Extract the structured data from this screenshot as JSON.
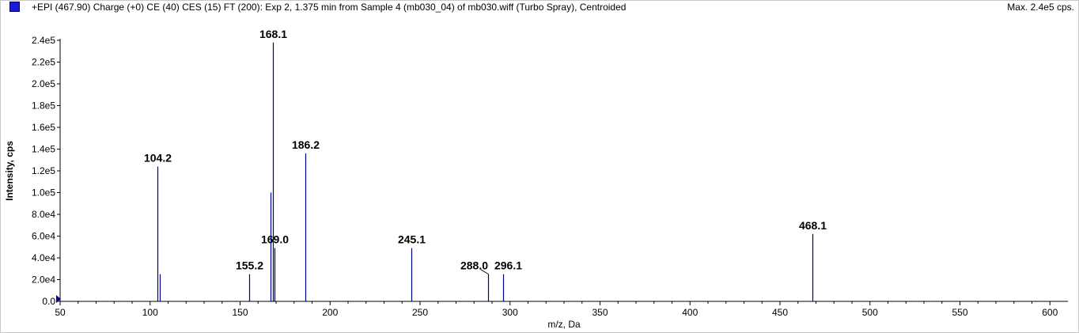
{
  "header": {
    "title": "+EPI (467.90) Charge (+0) CE (40) CES (15) FT (200): Exp 2, 1.375 min from Sample 4 (mb030_04) of mb030.wiff (Turbo Spray), Centroided",
    "max_label": "Max. 2.4e5 cps."
  },
  "colors": {
    "series": "#00008b",
    "swatch": "#1a1adc",
    "axis": "#000000"
  },
  "chart_data": {
    "type": "bar",
    "title": "+EPI (467.90) Charge (+0) CE (40) CES (15) FT (200): Exp 2, 1.375 min from Sample 4 (mb030_04) of mb030.wiff (Turbo Spray), Centroided",
    "xlabel": "m/z, Da",
    "ylabel": "Intensity, cps",
    "xlim": [
      50,
      610
    ],
    "ylim": [
      0,
      240000
    ],
    "xticks": [
      50,
      100,
      150,
      200,
      250,
      300,
      350,
      400,
      450,
      500,
      550,
      600
    ],
    "xtick_labels": [
      "50",
      "100",
      "150",
      "200",
      "250",
      "300",
      "350",
      "400",
      "450",
      "500",
      "550",
      "600"
    ],
    "yticks": [
      0,
      20000,
      40000,
      60000,
      80000,
      100000,
      120000,
      140000,
      160000,
      180000,
      200000,
      220000,
      240000
    ],
    "ytick_labels": [
      "0.0",
      "2.0e4",
      "4.0e4",
      "6.0e4",
      "8.0e4",
      "1.0e5",
      "1.2e5",
      "1.4e5",
      "1.6e5",
      "1.8e5",
      "2.0e5",
      "2.2e5",
      "2.4e5"
    ],
    "peaks": [
      {
        "x": 104.2,
        "y": 124000,
        "label": "104.2"
      },
      {
        "x": 105.2,
        "y": 25000,
        "label": ""
      },
      {
        "x": 155.2,
        "y": 25000,
        "label": "155.2"
      },
      {
        "x": 167.0,
        "y": 100000,
        "label": ""
      },
      {
        "x": 168.1,
        "y": 238000,
        "label": "168.1"
      },
      {
        "x": 169.0,
        "y": 49000,
        "label": "169.0"
      },
      {
        "x": 186.2,
        "y": 136000,
        "label": "186.2"
      },
      {
        "x": 245.1,
        "y": 49000,
        "label": "245.1"
      },
      {
        "x": 288.0,
        "y": 25000,
        "label": "288.0"
      },
      {
        "x": 296.1,
        "y": 25000,
        "label": "296.1"
      },
      {
        "x": 468.1,
        "y": 62000,
        "label": "468.1"
      }
    ]
  }
}
